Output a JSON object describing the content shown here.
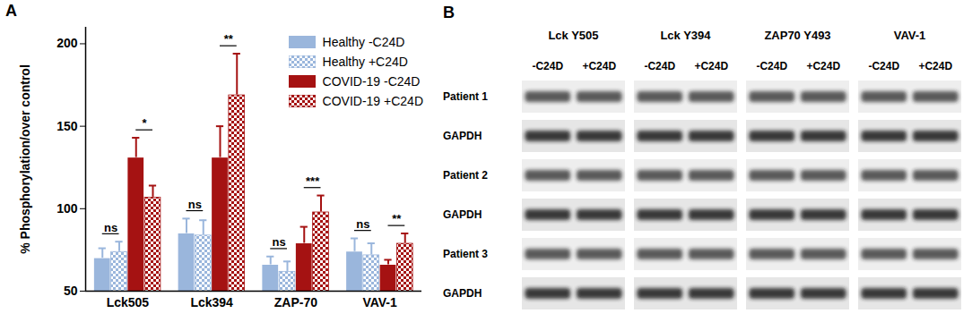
{
  "chart_data": {
    "type": "bar",
    "panel_label": "A",
    "y_label": "% Phosphorylation/over control",
    "categories": [
      "Lck505",
      "Lck394",
      "ZAP-70",
      "VAV-1"
    ],
    "ylim": [
      50,
      210
    ],
    "yticks": [
      50,
      100,
      150,
      200
    ],
    "legend": "top-right",
    "series": [
      {
        "name": "Healthy -C24D",
        "color": "#9ab6dc",
        "marker": "solid",
        "values": [
          70,
          85,
          66,
          74
        ],
        "errors": [
          6,
          9,
          5,
          8
        ]
      },
      {
        "name": "Healthy +C24D",
        "color": "#9ab6dc",
        "marker": "checkered",
        "values": [
          74,
          84,
          62,
          72
        ],
        "errors": [
          6,
          9,
          6,
          7
        ]
      },
      {
        "name": "COVID-19 -C24D",
        "color": "#a51212",
        "marker": "solid",
        "values": [
          131,
          131,
          79,
          66
        ],
        "errors": [
          12,
          19,
          10,
          3
        ]
      },
      {
        "name": "COVID-19 +C24D",
        "color": "#a51212",
        "marker": "checkered",
        "values": [
          107,
          169,
          98,
          79
        ],
        "errors": [
          7,
          25,
          10,
          6
        ]
      }
    ],
    "significance": [
      {
        "category": "Lck505",
        "series": [
          "Healthy -C24D",
          "Healthy +C24D"
        ],
        "label": "ns"
      },
      {
        "category": "Lck394",
        "series": [
          "Healthy -C24D",
          "Healthy +C24D"
        ],
        "label": "ns"
      },
      {
        "category": "ZAP-70",
        "series": [
          "Healthy -C24D",
          "Healthy +C24D"
        ],
        "label": "ns"
      },
      {
        "category": "VAV-1",
        "series": [
          "Healthy -C24D",
          "Healthy +C24D"
        ],
        "label": "ns"
      },
      {
        "category": "Lck505",
        "series": [
          "COVID-19 -C24D",
          "COVID-19 +C24D"
        ],
        "label": "*"
      },
      {
        "category": "Lck394",
        "series": [
          "COVID-19 -C24D",
          "COVID-19 +C24D"
        ],
        "label": "**"
      },
      {
        "category": "ZAP-70",
        "series": [
          "COVID-19 -C24D",
          "COVID-19 +C24D"
        ],
        "label": "***"
      },
      {
        "category": "VAV-1",
        "series": [
          "COVID-19 -C24D",
          "COVID-19 +C24D"
        ],
        "label": "**"
      }
    ]
  },
  "blot": {
    "panel_label": "B",
    "columns": [
      {
        "title": "Lck Y505",
        "lanes": [
          "-C24D",
          "+C24D"
        ]
      },
      {
        "title": "Lck Y394",
        "lanes": [
          "-C24D",
          "+C24D"
        ]
      },
      {
        "title": "ZAP70 Y493",
        "lanes": [
          "-C24D",
          "+C24D"
        ]
      },
      {
        "title": "VAV-1",
        "lanes": [
          "-C24D",
          "+C24D"
        ]
      }
    ],
    "rows": [
      "Patient 1",
      "GAPDH",
      "Patient 2",
      "GAPDH",
      "Patient 3",
      "GAPDH"
    ]
  }
}
